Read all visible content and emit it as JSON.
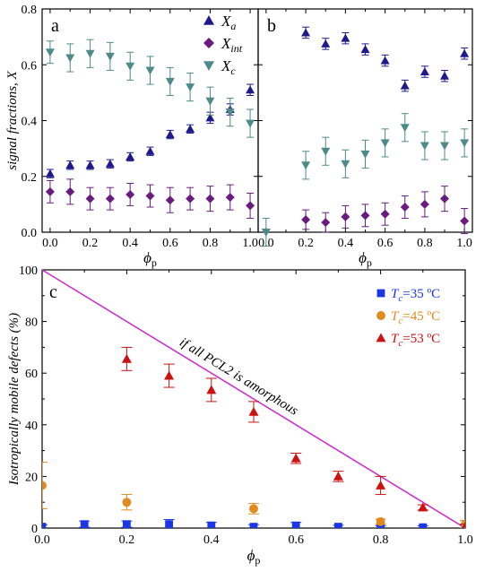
{
  "chart_data": [
    {
      "panel": "a",
      "type": "scatter",
      "ylabel": "signal fractions, X",
      "xlabel": "ϕp",
      "xlim": [
        -0.04,
        1.04
      ],
      "ylim": [
        0,
        0.8
      ],
      "xticks": [
        "0.0",
        "0.2",
        "0.4",
        "0.6",
        "0.8",
        "1.0"
      ],
      "yticks": [
        "0.0",
        "0.2",
        "0.4",
        "0.6",
        "0.8"
      ],
      "legend_position": "top-right",
      "series": [
        {
          "name": "Xa",
          "name_main": "X",
          "name_sub": "a",
          "marker": "triangle-up",
          "color": "#1f1a8c",
          "x": [
            0.0,
            0.1,
            0.2,
            0.3,
            0.4,
            0.5,
            0.6,
            0.7,
            0.8,
            0.9,
            1.0
          ],
          "y": [
            0.21,
            0.24,
            0.24,
            0.245,
            0.27,
            0.29,
            0.35,
            0.37,
            0.41,
            0.44,
            0.51
          ],
          "err": [
            0.015,
            0.015,
            0.015,
            0.015,
            0.015,
            0.015,
            0.015,
            0.015,
            0.02,
            0.02,
            0.02
          ]
        },
        {
          "name": "Xint",
          "name_main": "X",
          "name_sub": "int",
          "marker": "diamond",
          "color": "#6a1b7f",
          "x": [
            0.0,
            0.1,
            0.2,
            0.3,
            0.4,
            0.5,
            0.6,
            0.7,
            0.8,
            0.9,
            1.0
          ],
          "y": [
            0.145,
            0.145,
            0.12,
            0.12,
            0.135,
            0.13,
            0.115,
            0.12,
            0.12,
            0.125,
            0.095
          ],
          "err": [
            0.04,
            0.045,
            0.04,
            0.04,
            0.04,
            0.04,
            0.045,
            0.04,
            0.045,
            0.045,
            0.045
          ]
        },
        {
          "name": "Xc",
          "name_main": "X",
          "name_sub": "c",
          "marker": "triangle-down",
          "color": "#4f8a8b",
          "x": [
            0.0,
            0.1,
            0.2,
            0.3,
            0.4,
            0.5,
            0.6,
            0.7,
            0.8,
            0.9,
            1.0
          ],
          "y": [
            0.645,
            0.625,
            0.64,
            0.63,
            0.595,
            0.58,
            0.54,
            0.52,
            0.47,
            0.43,
            0.39
          ],
          "err": [
            0.04,
            0.05,
            0.05,
            0.05,
            0.05,
            0.05,
            0.05,
            0.05,
            0.05,
            0.05,
            0.05
          ]
        }
      ]
    },
    {
      "panel": "b",
      "type": "scatter",
      "xlabel": "ϕp",
      "xlim": [
        -0.04,
        1.04
      ],
      "ylim": [
        0,
        0.8
      ],
      "xticks": [
        "0.0",
        "0.2",
        "0.4",
        "0.6",
        "0.8",
        "1.0"
      ],
      "series": [
        {
          "name": "Xa",
          "marker": "triangle-up",
          "color": "#1f1a8c",
          "x": [
            0.2,
            0.3,
            0.4,
            0.5,
            0.6,
            0.7,
            0.8,
            0.9,
            1.0
          ],
          "y": [
            0.715,
            0.675,
            0.695,
            0.655,
            0.615,
            0.525,
            0.575,
            0.56,
            0.64
          ],
          "err": [
            0.02,
            0.02,
            0.02,
            0.02,
            0.02,
            0.02,
            0.02,
            0.02,
            0.02
          ]
        },
        {
          "name": "Xint",
          "marker": "diamond",
          "color": "#6a1b7f",
          "x": [
            0.2,
            0.3,
            0.4,
            0.5,
            0.6,
            0.7,
            0.8,
            0.9,
            1.0
          ],
          "y": [
            0.045,
            0.035,
            0.055,
            0.06,
            0.065,
            0.09,
            0.1,
            0.12,
            0.04
          ],
          "err": [
            0.035,
            0.035,
            0.04,
            0.04,
            0.04,
            0.04,
            0.045,
            0.045,
            0.045
          ]
        },
        {
          "name": "Xc",
          "marker": "triangle-down",
          "color": "#4f8a8b",
          "x": [
            0.0,
            0.2,
            0.3,
            0.4,
            0.5,
            0.6,
            0.7,
            0.8,
            0.9,
            1.0
          ],
          "y": [
            0.0,
            0.24,
            0.29,
            0.245,
            0.28,
            0.32,
            0.375,
            0.31,
            0.31,
            0.32
          ],
          "err": [
            0.05,
            0.05,
            0.05,
            0.05,
            0.05,
            0.05,
            0.05,
            0.05,
            0.05,
            0.05
          ]
        }
      ]
    },
    {
      "panel": "c",
      "type": "scatter",
      "ylabel": "Isotropically mobile defects (%)",
      "xlabel": "ϕp",
      "xlim": [
        0,
        1.0
      ],
      "ylim": [
        0,
        100
      ],
      "xticks": [
        "0.0",
        "0.2",
        "0.4",
        "0.6",
        "0.8",
        "1.0"
      ],
      "yticks": [
        "0",
        "20",
        "40",
        "60",
        "80",
        "100"
      ],
      "legend_position": "top-right",
      "annotation": "if all PCL2 is amorphous",
      "reference_line": {
        "x": [
          0.0,
          1.0
        ],
        "y": [
          100,
          0
        ],
        "color": "#cc33cc"
      },
      "series": [
        {
          "name": "Tc=35 ºC",
          "name_main": "T",
          "name_sub": "c",
          "name_rest": "=35 ºC",
          "marker": "square",
          "color": "#1a36e6",
          "x": [
            0.0,
            0.1,
            0.2,
            0.3,
            0.4,
            0.5,
            0.6,
            0.7,
            0.8,
            0.9,
            1.0
          ],
          "y": [
            0.5,
            1.5,
            1.5,
            1.5,
            1.0,
            0.5,
            1.0,
            0.5,
            0.3,
            0.3,
            0.5
          ],
          "err": [
            0.8,
            1.2,
            1.2,
            1.8,
            1.2,
            0.8,
            1.2,
            0.6,
            0.6,
            0.6,
            0.6
          ]
        },
        {
          "name": "Tc=45 ºC",
          "name_main": "T",
          "name_sub": "c",
          "name_rest": "=45 ºC",
          "marker": "circle",
          "color": "#e08a1f",
          "x": [
            0.0,
            0.2,
            0.5,
            0.8,
            1.0
          ],
          "y": [
            16.5,
            10.0,
            7.5,
            2.5,
            1.5
          ],
          "err": [
            9.0,
            3.0,
            2.0,
            1.0,
            1.5
          ]
        },
        {
          "name": "Tc=53 ºC",
          "name_main": "T",
          "name_sub": "c",
          "name_rest": "=53 ºC",
          "marker": "triangle-up",
          "color": "#cc1111",
          "x": [
            0.2,
            0.3,
            0.4,
            0.5,
            0.6,
            0.7,
            0.8,
            0.9,
            1.0
          ],
          "y": [
            65.5,
            59.0,
            53.5,
            45.0,
            27.0,
            20.0,
            16.5,
            8.0,
            0.5
          ],
          "err": [
            4.5,
            4.5,
            4.5,
            4.0,
            2.0,
            2.0,
            3.5,
            1.0,
            1.0
          ]
        }
      ]
    }
  ]
}
